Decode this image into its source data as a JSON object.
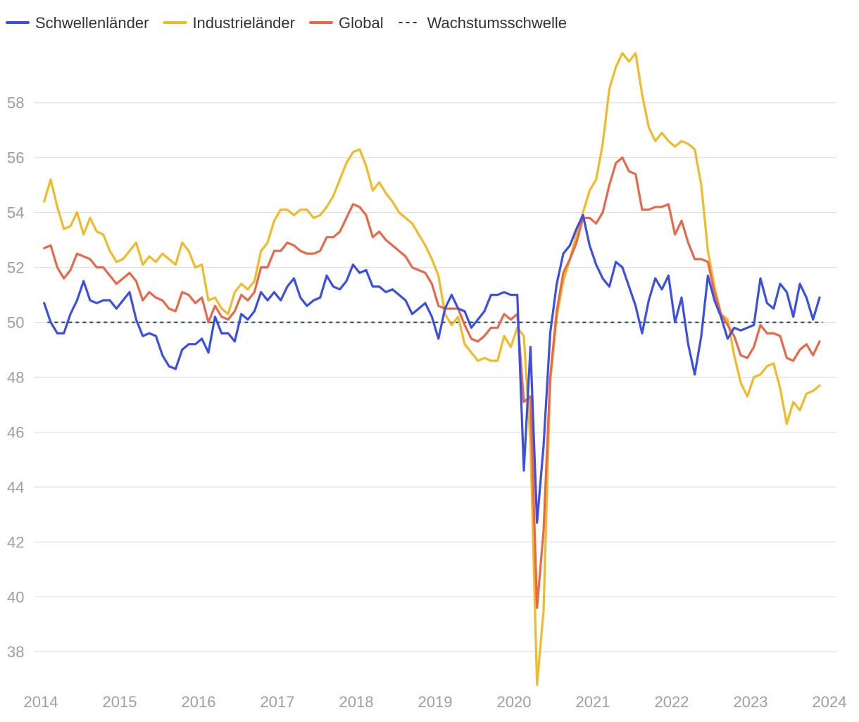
{
  "chart_data": {
    "type": "line",
    "title": "",
    "xlabel": "",
    "ylabel": "",
    "xlim": [
      2014,
      2024
    ],
    "ylim": [
      36.8,
      60.2
    ],
    "x_ticks": [
      "2014",
      "2015",
      "2016",
      "2017",
      "2018",
      "2019",
      "2020",
      "2021",
      "2022",
      "2023",
      "2024"
    ],
    "y_ticks": [
      "38",
      "40",
      "42",
      "44",
      "46",
      "48",
      "50",
      "52",
      "54",
      "56",
      "58"
    ],
    "grid": true,
    "legend_position": "top-left",
    "threshold": {
      "name": "Wachstumsschwelle",
      "value": 50,
      "color": "#1a3a4a",
      "style": "dashed"
    },
    "series": [
      {
        "name": "Schwellenländer",
        "color": "#3b4fe0",
        "values": [
          50.7,
          50.0,
          49.6,
          49.6,
          50.3,
          50.8,
          51.5,
          50.8,
          50.7,
          50.8,
          50.8,
          50.5,
          50.8,
          51.1,
          50.1,
          49.5,
          49.6,
          49.5,
          48.8,
          48.4,
          48.3,
          49.0,
          49.2,
          49.2,
          49.4,
          48.9,
          50.2,
          49.6,
          49.6,
          49.3,
          50.3,
          50.1,
          50.4,
          51.1,
          50.8,
          51.1,
          50.8,
          51.3,
          51.6,
          50.9,
          50.6,
          50.8,
          50.9,
          51.7,
          51.3,
          51.2,
          51.5,
          52.1,
          51.8,
          51.9,
          51.3,
          51.3,
          51.1,
          51.2,
          51.0,
          50.8,
          50.3,
          50.5,
          50.7,
          50.2,
          49.4,
          50.5,
          51.0,
          50.5,
          50.4,
          49.8,
          50.1,
          50.4,
          51.0,
          51.0,
          51.1,
          51.0,
          51.0,
          44.6,
          49.1,
          42.7,
          45.5,
          49.6,
          51.4,
          52.5,
          52.8,
          53.4,
          53.9,
          52.8,
          52.1,
          51.6,
          51.3,
          52.2,
          52.0,
          51.3,
          50.6,
          49.6,
          50.8,
          51.6,
          51.2,
          51.7,
          50.0,
          50.9,
          49.2,
          48.1,
          49.5,
          51.7,
          50.8,
          50.2,
          49.4,
          49.8,
          49.7,
          49.8,
          49.9,
          51.6,
          50.7,
          50.5,
          51.4,
          51.1,
          50.2,
          51.4,
          50.9,
          50.1,
          50.9
        ]
      },
      {
        "name": "Industrieländer",
        "color": "#f0bb28",
        "values": [
          54.4,
          55.2,
          54.2,
          53.4,
          53.5,
          54.0,
          53.2,
          53.8,
          53.3,
          53.2,
          52.6,
          52.2,
          52.3,
          52.6,
          52.9,
          52.1,
          52.4,
          52.2,
          52.5,
          52.3,
          52.1,
          52.9,
          52.6,
          52.0,
          52.1,
          50.8,
          50.9,
          50.5,
          50.3,
          51.1,
          51.4,
          51.2,
          51.5,
          52.6,
          52.9,
          53.7,
          54.1,
          54.1,
          53.9,
          54.1,
          54.1,
          53.8,
          53.9,
          54.2,
          54.6,
          55.2,
          55.8,
          56.2,
          56.3,
          55.7,
          54.8,
          55.1,
          54.7,
          54.4,
          54.0,
          53.8,
          53.6,
          53.2,
          52.8,
          52.3,
          51.7,
          50.3,
          49.9,
          50.2,
          49.2,
          48.9,
          48.6,
          48.7,
          48.6,
          48.6,
          49.5,
          49.1,
          49.8,
          49.5,
          45.6,
          36.8,
          39.5,
          47.8,
          50.2,
          51.5,
          52.3,
          53.2,
          54.0,
          54.8,
          55.2,
          56.5,
          58.5,
          59.3,
          59.8,
          59.5,
          59.8,
          58.3,
          57.1,
          56.6,
          56.9,
          56.6,
          56.4,
          56.6,
          56.5,
          56.3,
          55.0,
          52.6,
          51.3,
          50.3,
          50.1,
          48.8,
          47.8,
          47.3,
          48.0,
          48.1,
          48.4,
          48.5,
          47.6,
          46.3,
          47.1,
          46.8,
          47.4,
          47.5,
          47.7
        ]
      },
      {
        "name": "Global",
        "color": "#e8694a",
        "values": [
          52.7,
          52.8,
          52.0,
          51.6,
          51.9,
          52.5,
          52.4,
          52.3,
          52.0,
          52.0,
          51.7,
          51.4,
          51.6,
          51.8,
          51.5,
          50.8,
          51.1,
          50.9,
          50.8,
          50.5,
          50.4,
          51.1,
          51.0,
          50.7,
          50.9,
          50.0,
          50.6,
          50.2,
          50.1,
          50.4,
          51.0,
          50.8,
          51.1,
          52.0,
          52.0,
          52.6,
          52.6,
          52.9,
          52.8,
          52.6,
          52.5,
          52.5,
          52.6,
          53.1,
          53.1,
          53.3,
          53.8,
          54.3,
          54.2,
          53.9,
          53.1,
          53.3,
          53.0,
          52.8,
          52.6,
          52.4,
          52.0,
          51.9,
          51.8,
          51.4,
          50.6,
          50.5,
          50.5,
          50.5,
          49.9,
          49.4,
          49.3,
          49.5,
          49.8,
          49.8,
          50.3,
          50.1,
          50.3,
          47.1,
          47.3,
          39.6,
          42.4,
          48.0,
          50.4,
          51.8,
          52.3,
          52.9,
          53.8,
          53.8,
          53.6,
          54.0,
          55.0,
          55.8,
          56.0,
          55.5,
          55.4,
          54.1,
          54.1,
          54.2,
          54.2,
          54.3,
          53.2,
          53.7,
          52.9,
          52.3,
          52.3,
          52.2,
          51.1,
          50.3,
          49.9,
          49.5,
          48.8,
          48.7,
          49.1,
          49.9,
          49.6,
          49.6,
          49.5,
          48.7,
          48.6,
          49.0,
          49.2,
          48.8,
          49.3
        ]
      }
    ]
  }
}
